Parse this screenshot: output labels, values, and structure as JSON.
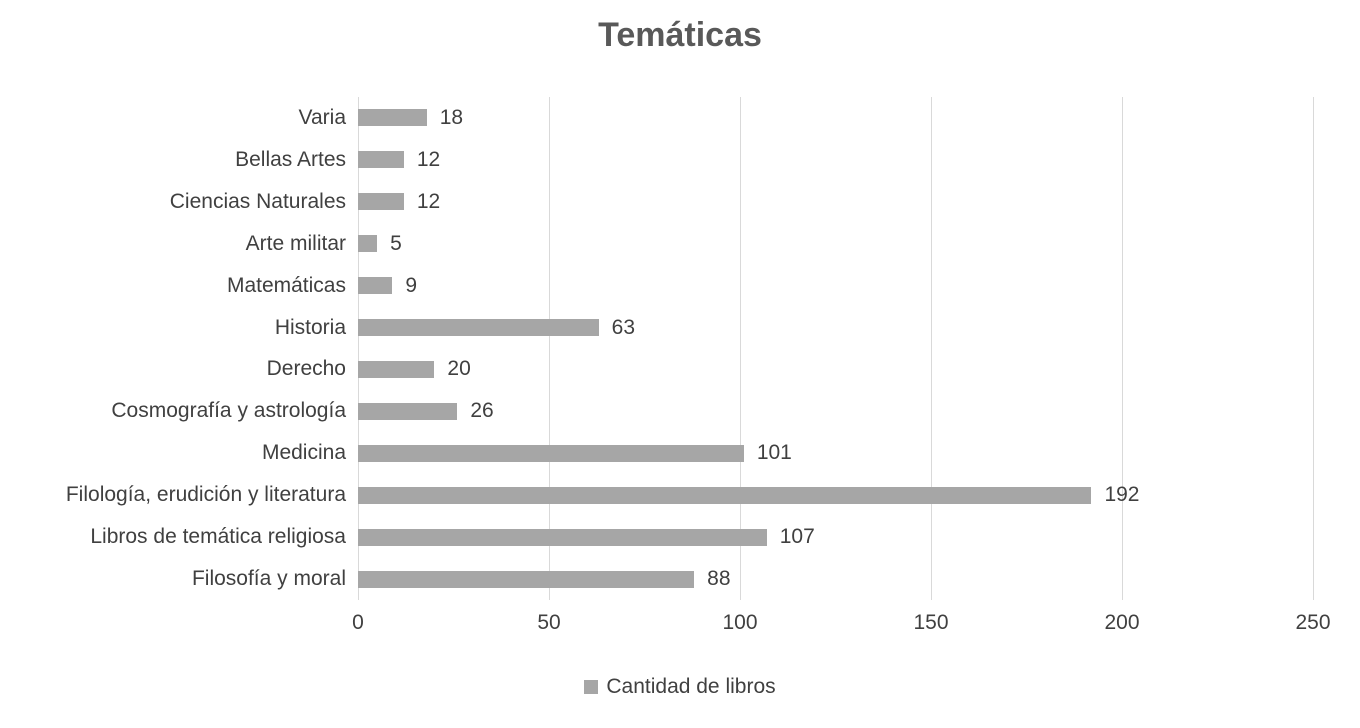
{
  "chart_data": {
    "type": "bar",
    "orientation": "horizontal",
    "title": "Temáticas",
    "categories": [
      "Varia",
      "Bellas Artes",
      "Ciencias Naturales",
      "Arte militar",
      "Matemáticas",
      "Historia",
      "Derecho",
      "Cosmografía y astrología",
      "Medicina",
      "Filología, erudición y literatura",
      "Libros de temática religiosa",
      "Filosofía y moral"
    ],
    "values": [
      18,
      12,
      12,
      5,
      9,
      63,
      20,
      26,
      101,
      192,
      107,
      88
    ],
    "series": [
      {
        "name": "Cantidad de libros",
        "values": [
          18,
          12,
          12,
          5,
          9,
          63,
          20,
          26,
          101,
          192,
          107,
          88
        ]
      }
    ],
    "xlabel": "",
    "ylabel": "",
    "xlim": [
      0,
      250
    ],
    "xticks": [
      0,
      50,
      100,
      150,
      200,
      250
    ],
    "grid": "vertical-only",
    "legend_position": "bottom",
    "colors": {
      "bar": "#a6a6a6",
      "gridline": "#d9d9d9",
      "title_text": "#595959",
      "label_text": "#404040",
      "background": "#ffffff"
    }
  },
  "legend": {
    "label": "Cantidad de libros"
  }
}
